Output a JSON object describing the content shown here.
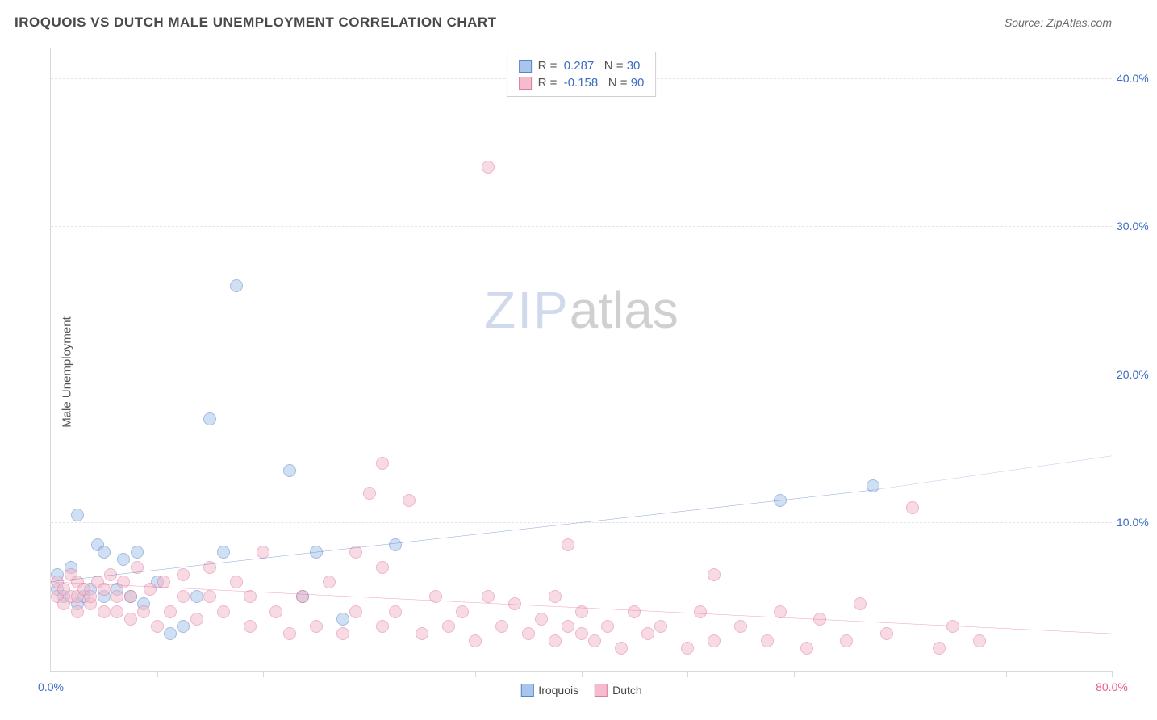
{
  "header": {
    "title": "IROQUOIS VS DUTCH MALE UNEMPLOYMENT CORRELATION CHART",
    "source": "Source: ZipAtlas.com"
  },
  "ylabel": "Male Unemployment",
  "watermark": {
    "part1": "ZIP",
    "part2": "atlas"
  },
  "colors": {
    "blue_fill": "#a9c5ec",
    "blue_stroke": "#5a86c8",
    "blue_line": "#3d6cc0",
    "pink_fill": "#f4bccd",
    "pink_stroke": "#e07ba0",
    "pink_line": "#e85d8a",
    "axis_text_blue": "#3d6cc0",
    "axis_text_pink": "#e85d8a",
    "grid": "#e5e5e5"
  },
  "chart": {
    "type": "scatter",
    "xlim": [
      0,
      80
    ],
    "ylim": [
      0,
      42
    ],
    "marker_radius": 8,
    "marker_opacity": 0.55,
    "y_ticks": [
      {
        "v": 10,
        "label": "10.0%"
      },
      {
        "v": 20,
        "label": "20.0%"
      },
      {
        "v": 30,
        "label": "30.0%"
      },
      {
        "v": 40,
        "label": "40.0%"
      }
    ],
    "x_ticks_minor": [
      8,
      16,
      24,
      32,
      40,
      48,
      56,
      64,
      72,
      80
    ],
    "x_labels": [
      {
        "v": 0,
        "label": "0.0%",
        "color_key": "axis_text_blue"
      },
      {
        "v": 80,
        "label": "80.0%",
        "color_key": "axis_text_pink"
      }
    ],
    "legend_top": [
      {
        "swatch_key": "blue",
        "r_label": "R =",
        "r_val": "0.287",
        "n_label": "N =",
        "n_val": "30"
      },
      {
        "swatch_key": "pink",
        "r_label": "R =",
        "r_val": "-0.158",
        "n_label": "N =",
        "n_val": "90"
      }
    ],
    "legend_bottom": [
      {
        "swatch_key": "blue",
        "label": "Iroquois"
      },
      {
        "swatch_key": "pink",
        "label": "Dutch"
      }
    ],
    "trend_lines": [
      {
        "color_key": "blue_line",
        "x1": 0,
        "y1": 6.0,
        "x2": 62,
        "y2": 12.2,
        "x2_dash": 80,
        "y2_dash": 14.5,
        "width": 2
      },
      {
        "color_key": "pink_line",
        "x1": 0,
        "y1": 6.0,
        "x2": 80,
        "y2": 2.5,
        "width": 2
      }
    ],
    "series": [
      {
        "name": "Iroquois",
        "color_key": "blue",
        "points": [
          [
            0.5,
            5.5
          ],
          [
            0.5,
            6.5
          ],
          [
            1,
            5
          ],
          [
            1.5,
            7
          ],
          [
            2,
            10.5
          ],
          [
            2,
            4.5
          ],
          [
            2.5,
            5
          ],
          [
            3,
            5.5
          ],
          [
            3.5,
            8.5
          ],
          [
            4,
            5
          ],
          [
            4,
            8
          ],
          [
            5,
            5.5
          ],
          [
            5.5,
            7.5
          ],
          [
            6,
            5
          ],
          [
            6.5,
            8
          ],
          [
            7,
            4.5
          ],
          [
            8,
            6
          ],
          [
            9,
            2.5
          ],
          [
            10,
            3
          ],
          [
            11,
            5
          ],
          [
            12,
            17
          ],
          [
            13,
            8
          ],
          [
            14,
            26
          ],
          [
            18,
            13.5
          ],
          [
            19,
            5
          ],
          [
            20,
            8
          ],
          [
            22,
            3.5
          ],
          [
            26,
            8.5
          ],
          [
            55,
            11.5
          ],
          [
            62,
            12.5
          ]
        ]
      },
      {
        "name": "Dutch",
        "color_key": "pink",
        "points": [
          [
            0.5,
            5
          ],
          [
            0.5,
            6
          ],
          [
            1,
            4.5
          ],
          [
            1,
            5.5
          ],
          [
            1.5,
            5
          ],
          [
            1.5,
            6.5
          ],
          [
            2,
            4
          ],
          [
            2,
            5
          ],
          [
            2,
            6
          ],
          [
            2.5,
            5.5
          ],
          [
            3,
            4.5
          ],
          [
            3,
            5
          ],
          [
            3.5,
            6
          ],
          [
            4,
            4
          ],
          [
            4,
            5.5
          ],
          [
            4.5,
            6.5
          ],
          [
            5,
            4
          ],
          [
            5,
            5
          ],
          [
            5.5,
            6
          ],
          [
            6,
            3.5
          ],
          [
            6,
            5
          ],
          [
            6.5,
            7
          ],
          [
            7,
            4
          ],
          [
            7.5,
            5.5
          ],
          [
            8,
            3
          ],
          [
            8.5,
            6
          ],
          [
            9,
            4
          ],
          [
            10,
            5
          ],
          [
            10,
            6.5
          ],
          [
            11,
            3.5
          ],
          [
            12,
            5
          ],
          [
            12,
            7
          ],
          [
            13,
            4
          ],
          [
            14,
            6
          ],
          [
            15,
            3
          ],
          [
            15,
            5
          ],
          [
            16,
            8
          ],
          [
            17,
            4
          ],
          [
            18,
            2.5
          ],
          [
            19,
            5
          ],
          [
            20,
            3
          ],
          [
            21,
            6
          ],
          [
            22,
            2.5
          ],
          [
            23,
            4
          ],
          [
            23,
            8
          ],
          [
            24,
            12
          ],
          [
            25,
            3
          ],
          [
            25,
            7
          ],
          [
            25,
            14
          ],
          [
            26,
            4
          ],
          [
            27,
            11.5
          ],
          [
            28,
            2.5
          ],
          [
            29,
            5
          ],
          [
            30,
            3
          ],
          [
            31,
            4
          ],
          [
            32,
            2
          ],
          [
            33,
            34
          ],
          [
            33,
            5
          ],
          [
            34,
            3
          ],
          [
            35,
            4.5
          ],
          [
            36,
            2.5
          ],
          [
            37,
            3.5
          ],
          [
            38,
            2
          ],
          [
            38,
            5
          ],
          [
            39,
            3
          ],
          [
            39,
            8.5
          ],
          [
            40,
            2.5
          ],
          [
            40,
            4
          ],
          [
            41,
            2
          ],
          [
            42,
            3
          ],
          [
            43,
            1.5
          ],
          [
            44,
            4
          ],
          [
            45,
            2.5
          ],
          [
            46,
            3
          ],
          [
            48,
            1.5
          ],
          [
            49,
            4
          ],
          [
            50,
            2
          ],
          [
            50,
            6.5
          ],
          [
            52,
            3
          ],
          [
            54,
            2
          ],
          [
            55,
            4
          ],
          [
            57,
            1.5
          ],
          [
            58,
            3.5
          ],
          [
            60,
            2
          ],
          [
            61,
            4.5
          ],
          [
            63,
            2.5
          ],
          [
            65,
            11
          ],
          [
            67,
            1.5
          ],
          [
            68,
            3
          ],
          [
            70,
            2
          ]
        ]
      }
    ]
  }
}
